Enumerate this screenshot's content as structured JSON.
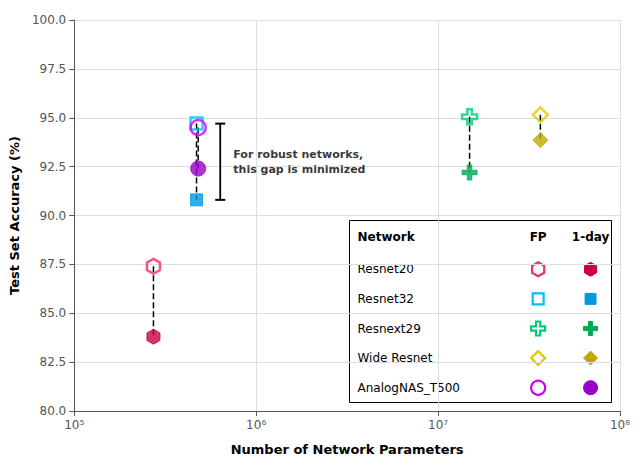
{
  "chart_data": {
    "type": "scatter",
    "xlabel": "Number of Network Parameters",
    "ylabel": "Test Set Accuracy (%)",
    "log": "x",
    "xlim": [
      100000,
      100000000
    ],
    "xticks": [
      {
        "value": 100000,
        "label": "10⁵"
      },
      {
        "value": 1000000,
        "label": "10⁶"
      },
      {
        "value": 10000000,
        "label": "10⁷"
      },
      {
        "value": 100000000,
        "label": "10⁸"
      }
    ],
    "ylim": [
      80.0,
      100.0
    ],
    "yticks": [
      {
        "value": 80,
        "label": "80.0"
      },
      82.5,
      {
        "value": 85,
        "label": "85.0"
      },
      87.5,
      {
        "value": 90,
        "label": "90.0"
      },
      92.5,
      {
        "value": 95,
        "label": "95.0"
      },
      97.5,
      {
        "value": 100,
        "label": "100.0"
      }
    ],
    "grid": true,
    "series": [
      {
        "name": "Resnet20",
        "x": [
          272474,
          272474
        ],
        "values": [
          87.4,
          83.8
        ],
        "colors": [
          "#f03060",
          "#cc0040"
        ],
        "marker": "hexagon"
      },
      {
        "name": "Resnet32",
        "x": [
          470000,
          470000
        ],
        "values": [
          94.7,
          90.8
        ],
        "colors": [
          "#00bfff",
          "#0099dd"
        ],
        "marker": "square"
      },
      {
        "name": "AnalogNAS_T500",
        "x": [
          480000,
          480000
        ],
        "values": [
          94.5,
          92.4
        ],
        "colors": [
          "#cc00ff",
          "#9900cc"
        ],
        "marker": "circle"
      },
      {
        "name": "Resnext29",
        "x": [
          14900000,
          14900000
        ],
        "values": [
          95.05,
          92.2
        ],
        "colors": [
          "#00cc77",
          "#00aa55"
        ],
        "marker": "cross"
      },
      {
        "name": "Wide Resnet",
        "x": [
          36500000,
          36500000
        ],
        "values": [
          95.15,
          93.85
        ],
        "colors": [
          "#ddcc00",
          "#bbaa00"
        ],
        "marker": "diamond"
      }
    ],
    "annotations": [
      {
        "text": "For robust networks,\nthis gap is minimized",
        "x": 470000,
        "y": [
          94.7,
          90.8
        ]
      }
    ],
    "legend": "lower right",
    "legend_header": [
      "Network",
      "FP",
      "1-day"
    ],
    "legend_order": [
      "Resnet20",
      "Resnet32",
      "Resnext29",
      "Wide Resnet",
      "AnalogNAS_T500"
    ]
  }
}
